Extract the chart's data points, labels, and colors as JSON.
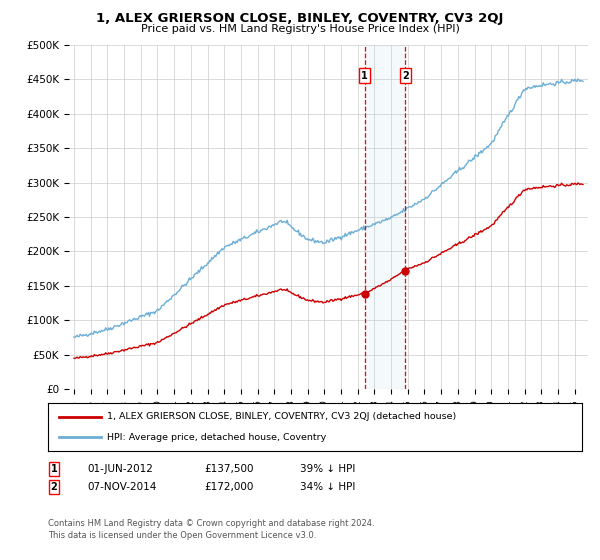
{
  "title": "1, ALEX GRIERSON CLOSE, BINLEY, COVENTRY, CV3 2QJ",
  "subtitle": "Price paid vs. HM Land Registry's House Price Index (HPI)",
  "yticks": [
    0,
    50000,
    100000,
    150000,
    200000,
    250000,
    300000,
    350000,
    400000,
    450000,
    500000
  ],
  "ytick_labels": [
    "£0",
    "£50K",
    "£100K",
    "£150K",
    "£200K",
    "£250K",
    "£300K",
    "£350K",
    "£400K",
    "£450K",
    "£500K"
  ],
  "hpi_color": "#6baed6",
  "price_color": "#cc0000",
  "sale1_date_num": 2012.417,
  "sale1_price": 137500,
  "sale2_date_num": 2014.854,
  "sale2_price": 172000,
  "sale1_label": "1",
  "sale2_label": "2",
  "legend_line1": "1, ALEX GRIERSON CLOSE, BINLEY, COVENTRY, CV3 2QJ (detached house)",
  "legend_line2": "HPI: Average price, detached house, Coventry",
  "footnote1": "Contains HM Land Registry data © Crown copyright and database right 2024.",
  "footnote2": "This data is licensed under the Open Government Licence v3.0.",
  "table_row1": [
    "1",
    "01-JUN-2012",
    "£137,500",
    "39% ↓ HPI"
  ],
  "table_row2": [
    "2",
    "07-NOV-2014",
    "£172,000",
    "34% ↓ HPI"
  ],
  "background_color": "#ffffff",
  "grid_color": "#cccccc",
  "ylim_max": 500000,
  "xlim_min": 1994.7,
  "xlim_max": 2025.8
}
